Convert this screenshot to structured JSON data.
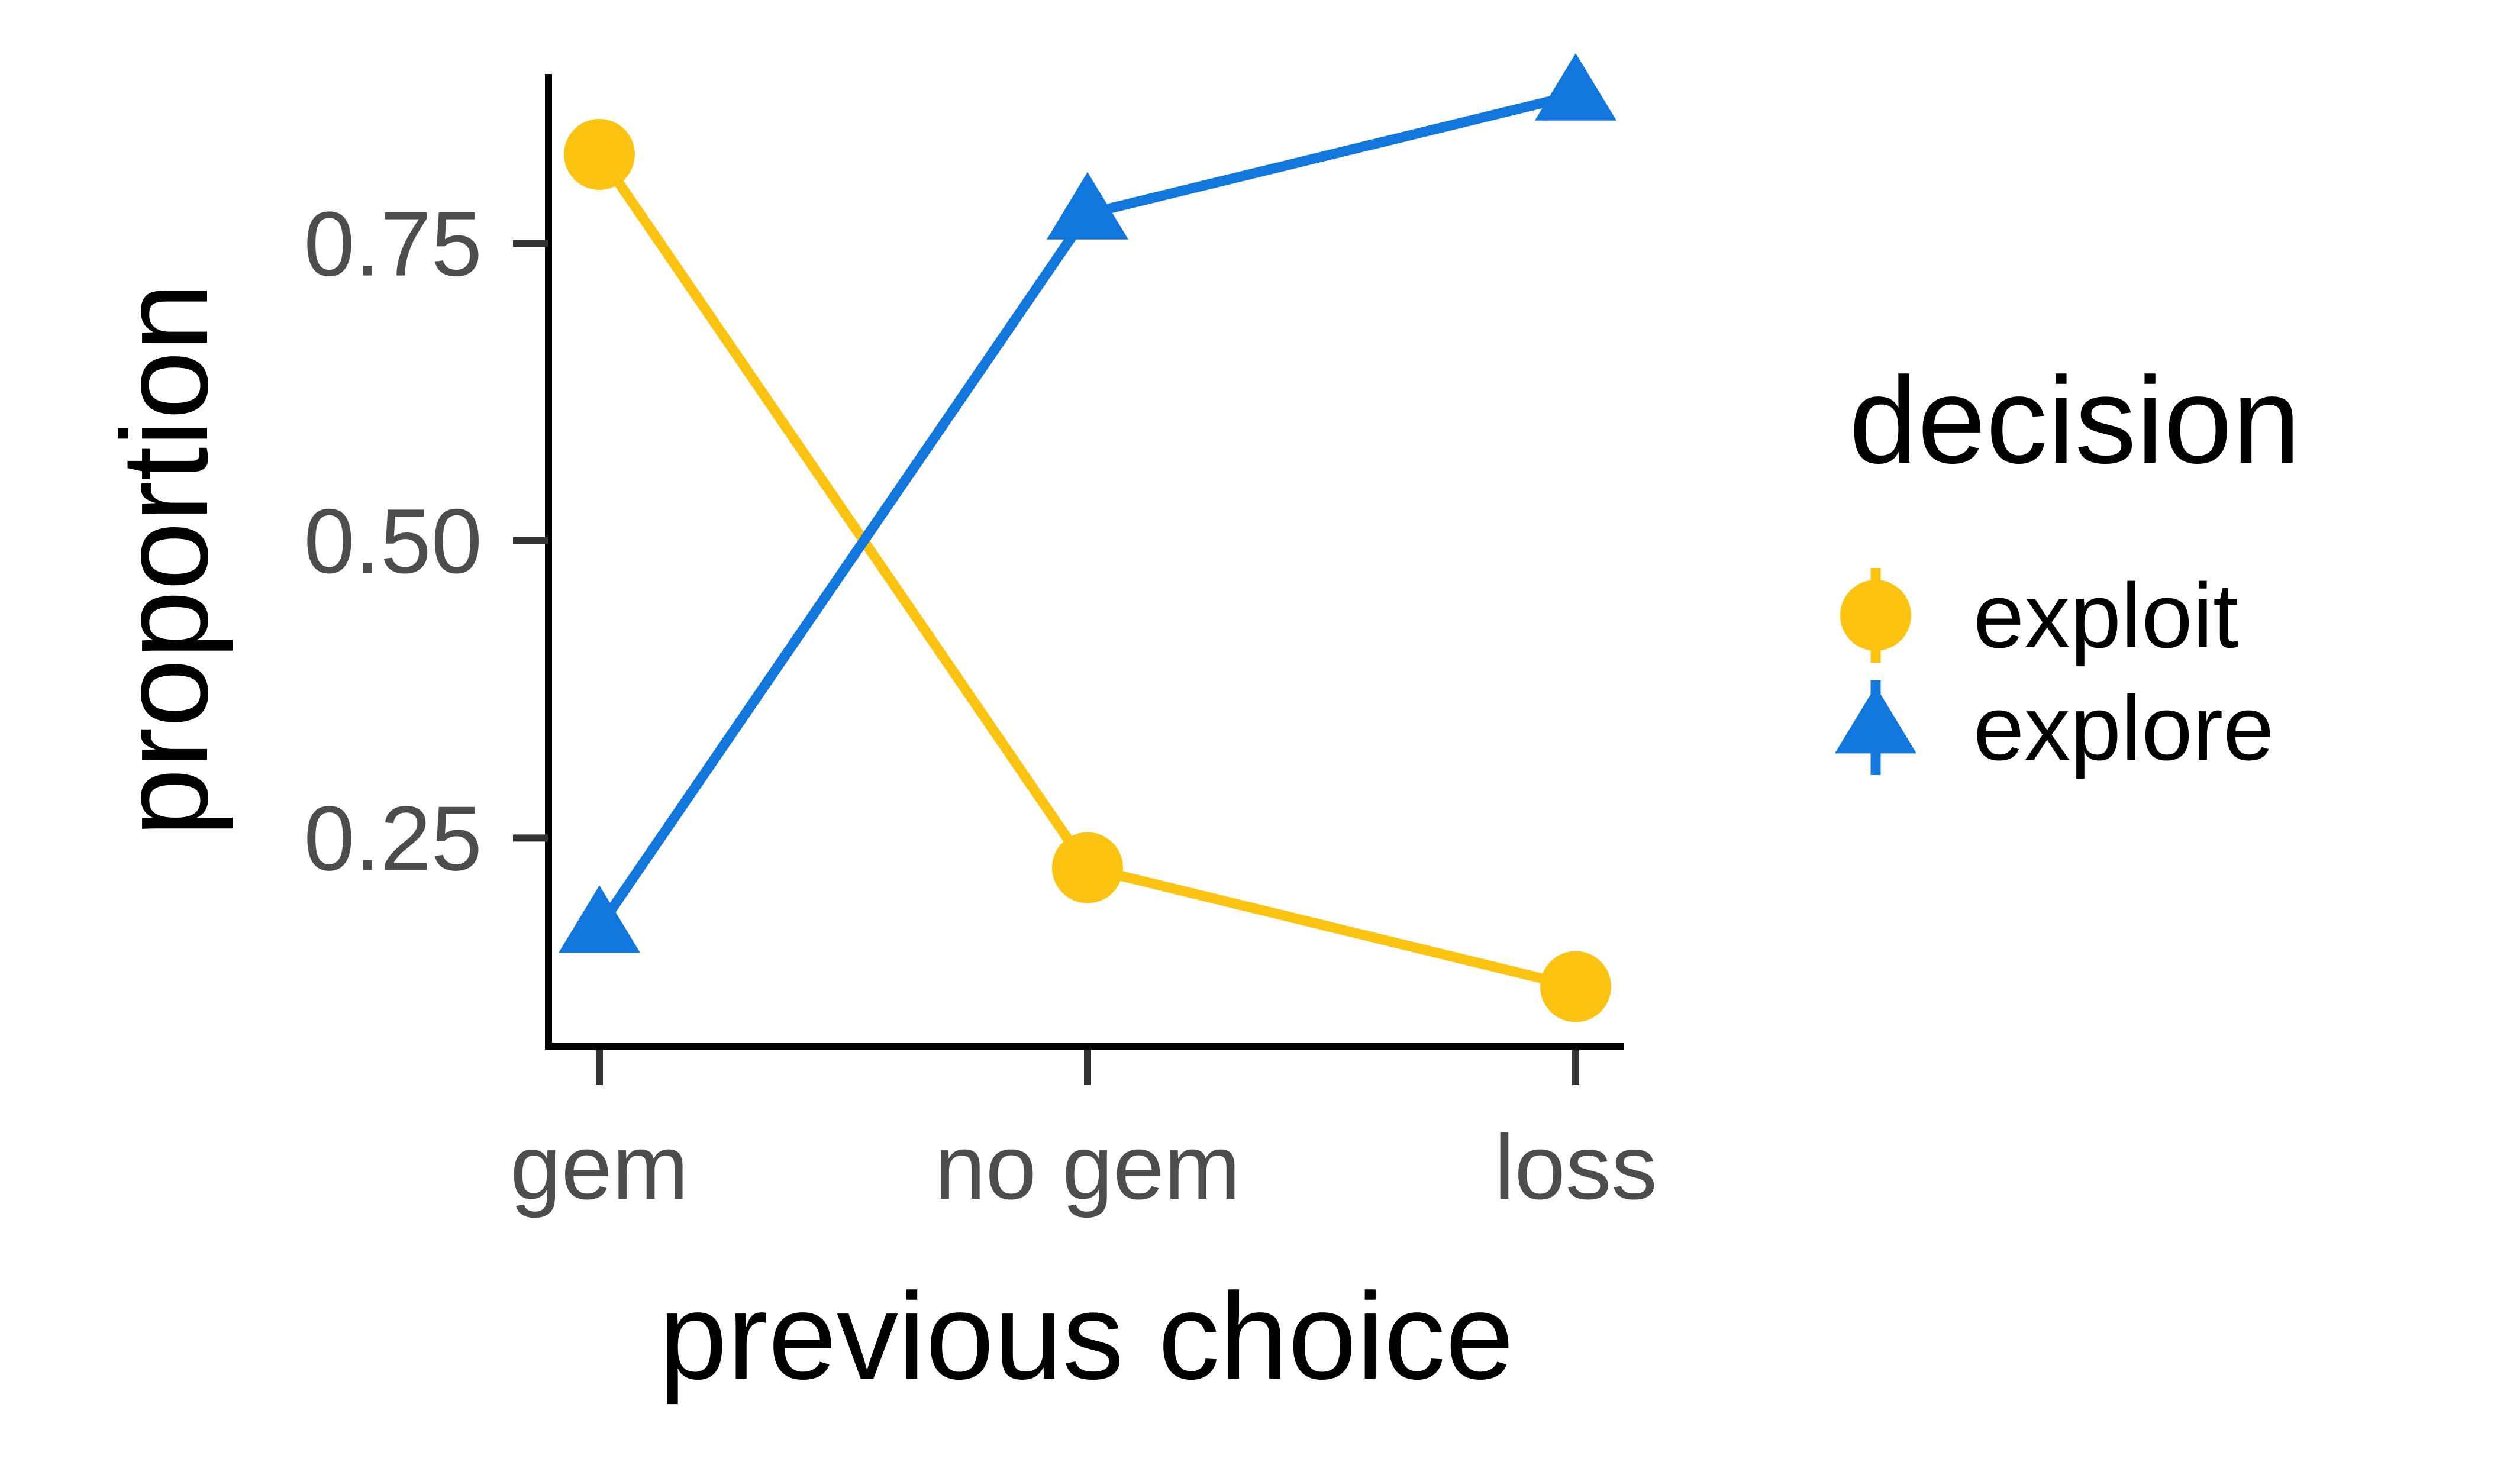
{
  "chart_data": {
    "type": "line",
    "categories": [
      "gem",
      "no gem",
      "loss"
    ],
    "xlabel": "previous choice",
    "ylabel": "proportion",
    "ylim": [
      0.075,
      0.925
    ],
    "yticks": [
      0.25,
      0.5,
      0.75
    ],
    "ytick_labels": [
      "0.25",
      "0.50",
      "0.75"
    ],
    "grid": false,
    "legend": {
      "title": "decision",
      "placement": "right"
    },
    "series": [
      {
        "name": "exploit",
        "values": [
          0.825,
          0.225,
          0.125
        ],
        "color": "#FDC311",
        "marker": "circle"
      },
      {
        "name": "explore",
        "values": [
          0.175,
          0.775,
          0.875
        ],
        "color": "#1177DD",
        "marker": "triangle"
      }
    ]
  }
}
